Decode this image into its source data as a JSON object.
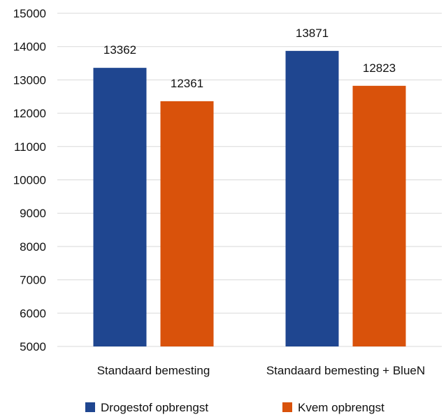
{
  "chart_data": {
    "type": "bar",
    "categories": [
      "Standaard bemesting",
      "Standaard bemesting + BlueN"
    ],
    "series": [
      {
        "name": "Drogestof opbrengst",
        "color": "#1f4690",
        "values": [
          13362,
          13871
        ]
      },
      {
        "name": "Kvem opbrengst",
        "color": "#d9520b",
        "values": [
          12361,
          12823
        ]
      }
    ],
    "ylim": [
      5000,
      15000
    ],
    "yticks": [
      5000,
      6000,
      7000,
      8000,
      9000,
      10000,
      11000,
      12000,
      13000,
      14000,
      15000
    ],
    "grid": true,
    "legend_position": "bottom",
    "data_labels": true
  }
}
